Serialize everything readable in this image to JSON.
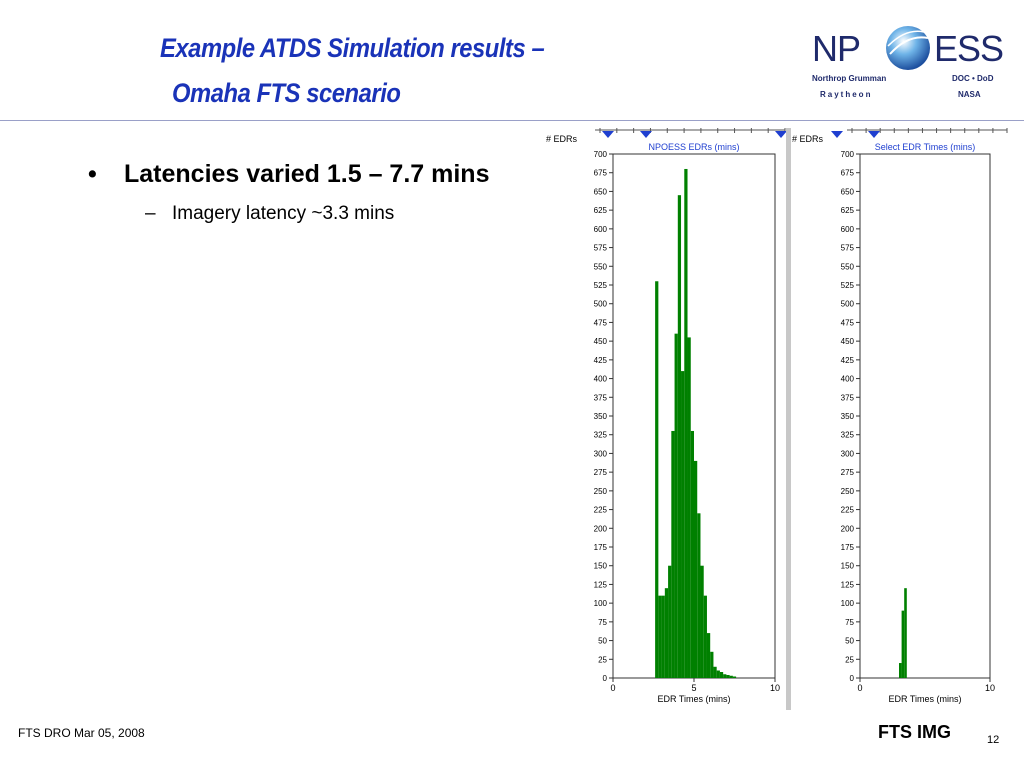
{
  "slide": {
    "title_line1": "Example ATDS Simulation results –",
    "title_line2": "Omaha FTS scenario",
    "bullet": "Latencies varied 1.5 – 7.7 mins",
    "bullet_marker": "•",
    "sub_bullet": "Imagery latency ~3.3 mins",
    "sub_marker": "–",
    "footer_left": "FTS DRO Mar 05, 2008",
    "footer_right": "FTS IMG",
    "page_number": "12"
  },
  "logo": {
    "left_text": "NP",
    "right_text": "ESS",
    "line1_left": "Northrop Grumman",
    "line1_right": "DOC • DoD",
    "line2_left": "Raytheon",
    "line2_right": "NASA",
    "icon": "globe-icon"
  },
  "colors": {
    "title": "#1a33b8",
    "bar": "#008000",
    "chart_title": "#1f3fd0",
    "marker": "#1f3fd0"
  },
  "chart_data": [
    {
      "type": "bar",
      "title": "NPOESS EDRs (mins)",
      "ylabel": "# EDRs",
      "xlabel": "EDR Times (mins)",
      "xlim": [
        0,
        10
      ],
      "ylim": [
        0,
        700
      ],
      "xticks": [
        0,
        5,
        10
      ],
      "yticks": [
        0,
        25,
        50,
        75,
        100,
        125,
        150,
        175,
        200,
        225,
        250,
        275,
        300,
        325,
        350,
        375,
        400,
        425,
        450,
        475,
        500,
        525,
        550,
        575,
        600,
        625,
        650,
        675,
        700
      ],
      "bin_width": 0.2,
      "x": [
        2.6,
        2.8,
        3.0,
        3.2,
        3.4,
        3.6,
        3.8,
        4.0,
        4.2,
        4.4,
        4.6,
        4.8,
        5.0,
        5.2,
        5.4,
        5.6,
        5.8,
        6.0,
        6.2,
        6.4,
        6.6,
        6.8,
        7.0,
        7.2,
        7.4
      ],
      "values": [
        530,
        110,
        110,
        120,
        150,
        330,
        460,
        645,
        410,
        680,
        455,
        330,
        290,
        220,
        150,
        110,
        60,
        35,
        15,
        10,
        8,
        5,
        4,
        3,
        2
      ]
    },
    {
      "type": "bar",
      "title": "Select EDR Times (mins)",
      "ylabel": "# EDRs",
      "xlabel": "EDR Times (mins)",
      "xlim": [
        0,
        10
      ],
      "ylim": [
        0,
        700
      ],
      "xticks": [
        0,
        10
      ],
      "yticks": [
        0,
        25,
        50,
        75,
        100,
        125,
        150,
        175,
        200,
        225,
        250,
        275,
        300,
        325,
        350,
        375,
        400,
        425,
        450,
        475,
        500,
        525,
        550,
        575,
        600,
        625,
        650,
        675,
        700
      ],
      "bin_width": 0.2,
      "x": [
        3.0,
        3.2,
        3.4
      ],
      "values": [
        20,
        90,
        120
      ]
    }
  ]
}
